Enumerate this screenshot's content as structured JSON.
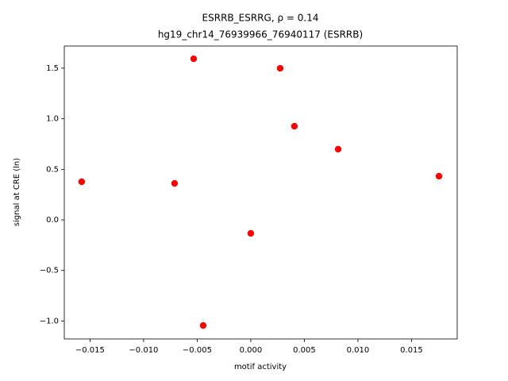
{
  "chart_data": {
    "type": "scatter",
    "title": "ESRRB_ESRRG, ρ = 0.14",
    "subtitle": "hg19_chr14_76939966_76940117 (ESRRB)",
    "x_label": "motif activity",
    "y_label": "signal at CRE (ln)",
    "color": "#ff0000",
    "x": [
      -0.01578,
      -0.00711,
      -0.00533,
      -0.00444,
      0.0,
      0.00274,
      0.00407,
      0.00815,
      0.01756
    ],
    "values": [
      0.377,
      0.361,
      1.593,
      -1.044,
      -0.133,
      1.499,
      0.926,
      0.699,
      0.432
    ],
    "xlim": [
      -0.0174,
      0.01926
    ],
    "ylim": [
      -1.177,
      1.719
    ],
    "xticks": [
      {
        "value": -0.015,
        "label": "−0.015"
      },
      {
        "value": -0.01,
        "label": "−0.010"
      },
      {
        "value": -0.005,
        "label": "−0.005"
      },
      {
        "value": 0,
        "label": "0.000"
      },
      0.005,
      {
        "value": 0.01,
        "label": "0.010"
      },
      0.015
    ],
    "yticks": [
      {
        "value": -1,
        "label": "−1.0"
      },
      {
        "value": -0.5,
        "label": "−0.5"
      },
      {
        "value": 0,
        "label": "0.0"
      },
      0.5,
      {
        "value": 1,
        "label": "1.0"
      },
      1.5
    ]
  }
}
